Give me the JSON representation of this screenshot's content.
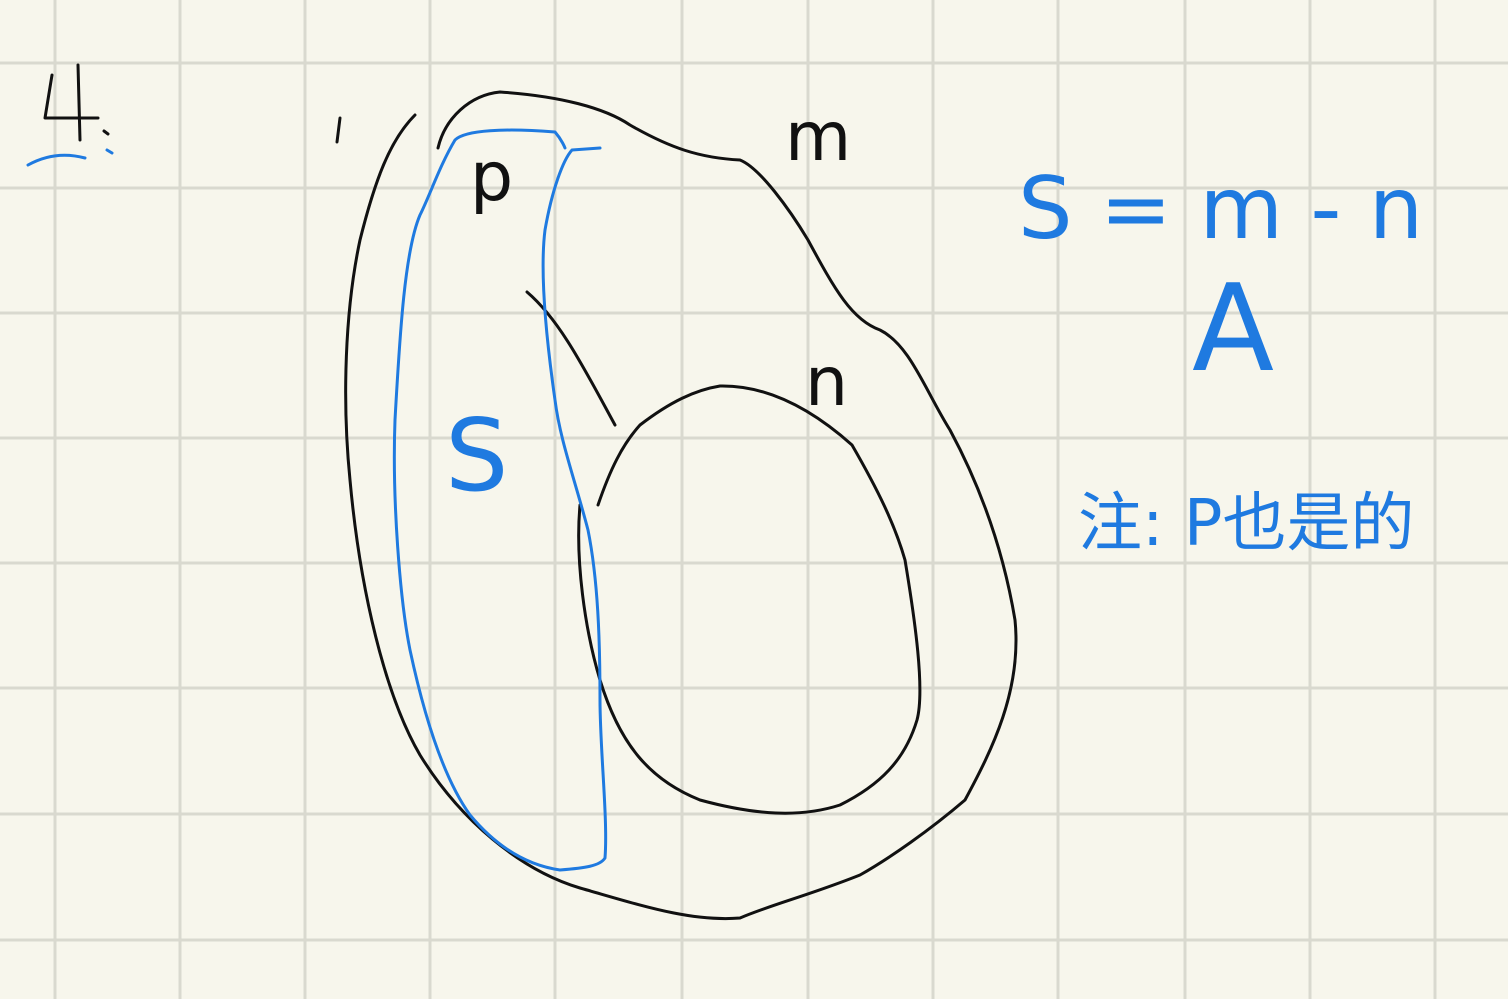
{
  "page": {
    "background_color": "#f7f6ec",
    "grid_color": "#d9d9cf",
    "ink_black": "#111111",
    "ink_blue": "#1f7ae0"
  },
  "problem_number": "4.",
  "labels": {
    "m": "m",
    "n": "n",
    "p": "p",
    "s": "S"
  },
  "annotations": {
    "formula": "S = m - n",
    "answer": "A",
    "note": "注: P也是的"
  },
  "icons": [
    "circled-region-icon"
  ]
}
